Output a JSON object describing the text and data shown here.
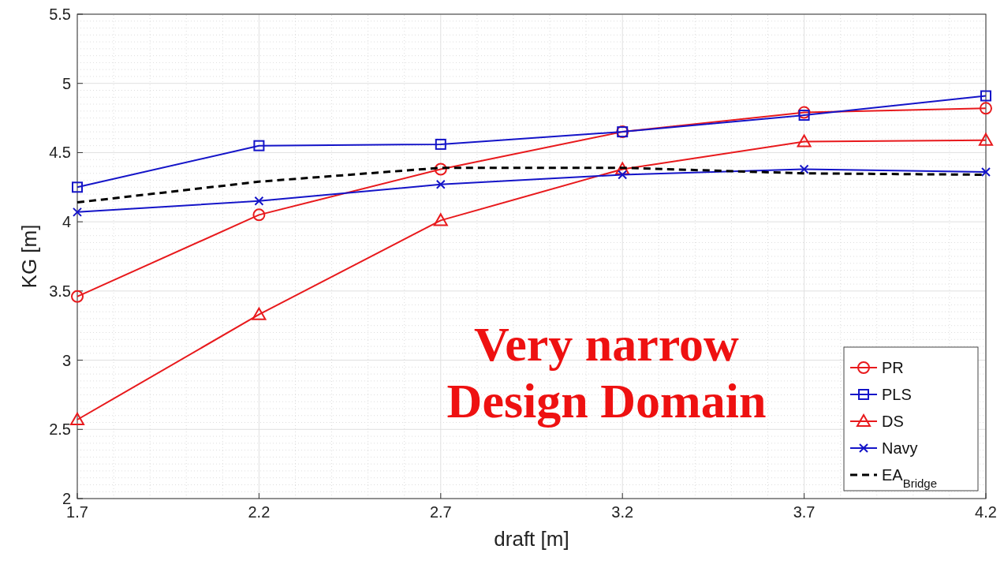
{
  "chart_data": {
    "type": "line",
    "xlabel": "draft [m]",
    "ylabel": "KG [m]",
    "x": [
      1.7,
      2.2,
      2.7,
      3.2,
      3.7,
      4.2
    ],
    "xlim": [
      1.7,
      4.2
    ],
    "xticks": [
      1.7,
      2.2,
      2.7,
      3.2,
      3.7,
      4.2
    ],
    "ylim": [
      2,
      5.5
    ],
    "yticks": [
      2,
      2.5,
      3,
      3.5,
      4,
      4.5,
      5,
      5.5
    ],
    "grid": true,
    "legend": "bottom right",
    "annotations": [
      "Very narrow\nDesign Domain"
    ],
    "series": [
      {
        "name": "PR",
        "color": "#e8191c",
        "marker": "circle",
        "line_style": "solid",
        "values": [
          3.46,
          4.05,
          4.38,
          4.65,
          4.79,
          4.82
        ]
      },
      {
        "name": "PLS",
        "color": "#1414c8",
        "marker": "square",
        "line_style": "solid",
        "values": [
          4.25,
          4.55,
          4.56,
          4.65,
          4.77,
          4.91
        ]
      },
      {
        "name": "DS",
        "color": "#e8191c",
        "marker": "triangle",
        "line_style": "solid",
        "values": [
          2.57,
          3.33,
          4.01,
          4.38,
          4.58,
          4.59
        ]
      },
      {
        "name": "Navy",
        "color": "#1414c8",
        "marker": "cross",
        "line_style": "solid",
        "values": [
          4.07,
          4.15,
          4.27,
          4.34,
          4.38,
          4.36
        ]
      },
      {
        "name": "EA$_{Bridge}$",
        "color": "#000000",
        "marker": "none",
        "line_style": "dashed",
        "values": [
          4.14,
          4.29,
          4.39,
          4.39,
          4.35,
          4.34
        ]
      }
    ]
  }
}
